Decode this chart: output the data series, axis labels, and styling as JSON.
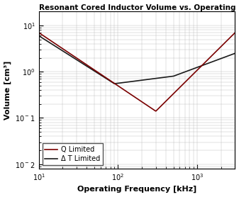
{
  "title": "Resonant Cored Inductor Volume vs. Operating Freque",
  "xlabel": "Operating Frequency [kHz]",
  "ylabel": "Volume [cm³]",
  "xlim": [
    10,
    3000
  ],
  "ylim": [
    0.008,
    20
  ],
  "yticks": [
    0.01,
    0.1,
    1,
    10
  ],
  "xticks": [
    10,
    100,
    1000
  ],
  "legend_entries": [
    "Q Limited",
    "Δ T Limited"
  ],
  "line_colors_q": "#7a0000",
  "line_colors_dt": "#1a1a1a",
  "line_width": 1.2,
  "title_fontsize": 7.5,
  "label_fontsize": 8,
  "tick_fontsize": 7,
  "legend_fontsize": 7,
  "grid_color": "#bbbbbb",
  "grid_linewidth": 0.3
}
